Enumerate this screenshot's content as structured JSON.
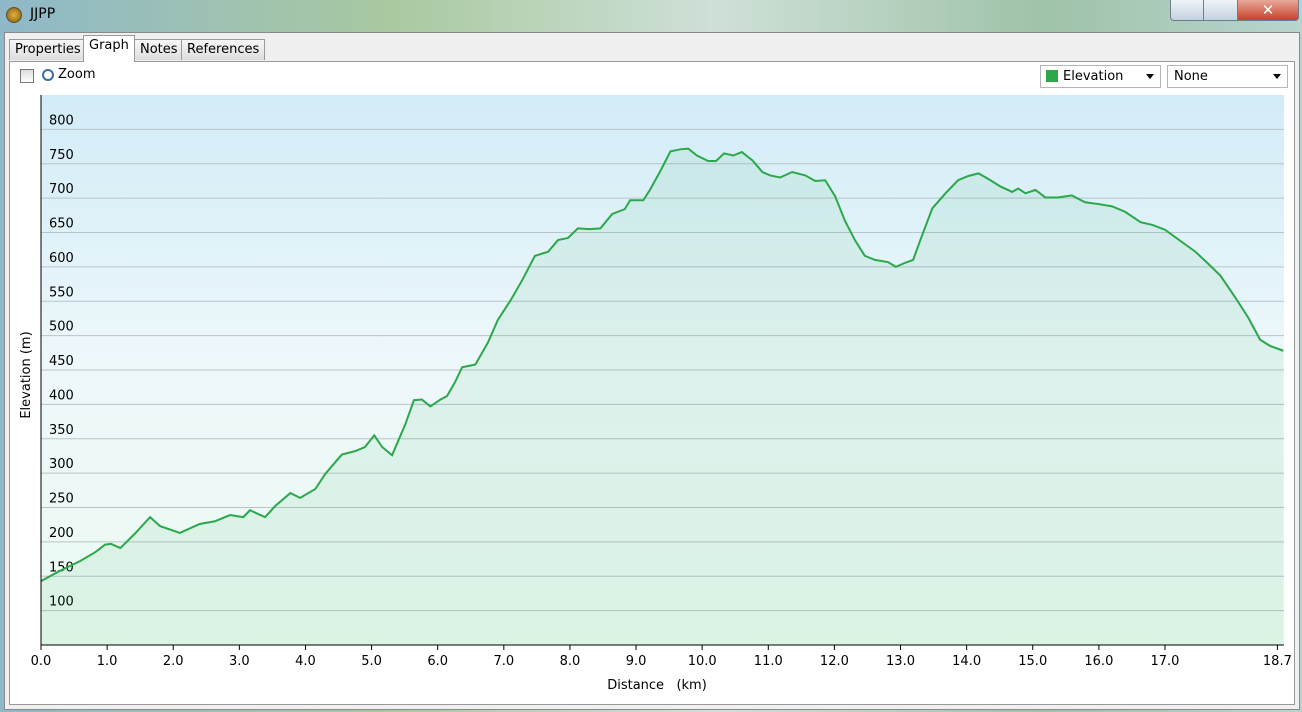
{
  "window": {
    "title": "JJPP"
  },
  "tabs": [
    "Properties",
    "Graph",
    "Notes",
    "References"
  ],
  "toolbar": {
    "zoom_label": "Zoom",
    "secondary_series": "None"
  },
  "chart_data": {
    "type": "line",
    "x_label": "Distance   (km)",
    "y_label": "Elevation (m)",
    "x": [
      0,
      0.29,
      0.59,
      0.82,
      0.97,
      1.06,
      1.2,
      1.42,
      1.65,
      1.8,
      2.1,
      2.4,
      2.63,
      2.86,
      3.06,
      3.16,
      3.39,
      3.54,
      3.77,
      3.92,
      4.15,
      4.3,
      4.55,
      4.75,
      4.9,
      5.04,
      5.16,
      5.31,
      5.51,
      5.64,
      5.76,
      5.89,
      6.04,
      6.14,
      6.26,
      6.37,
      6.57,
      6.76,
      6.91,
      7.1,
      7.28,
      7.47,
      7.67,
      7.82,
      7.97,
      8.12,
      8.3,
      8.46,
      8.64,
      8.83,
      8.91,
      9.11,
      9.21,
      9.36,
      9.52,
      9.67,
      9.79,
      9.92,
      10.09,
      10.21,
      10.33,
      10.47,
      10.6,
      10.76,
      10.91,
      11.03,
      11.18,
      11.36,
      11.56,
      11.71,
      11.86,
      12.01,
      12.16,
      12.31,
      12.46,
      12.62,
      12.81,
      12.93,
      13.07,
      13.19,
      13.3,
      13.48,
      13.68,
      13.87,
      14.02,
      14.18,
      14.36,
      14.51,
      14.69,
      14.78,
      14.89,
      15.04,
      15.19,
      15.38,
      15.59,
      15.79,
      16.02,
      16.2,
      16.4,
      16.63,
      16.81,
      17.0,
      17.23,
      17.46,
      17.66,
      17.84,
      18.06,
      18.26,
      18.44,
      18.59,
      18.79
    ],
    "series": [
      {
        "name": "Elevation",
        "color": "#2aa84a",
        "values": [
          143,
          158,
          172,
          185,
          196,
          197,
          191,
          212,
          236,
          223,
          213,
          226,
          230,
          239,
          236,
          246,
          236,
          252,
          271,
          264,
          277,
          299,
          327,
          332,
          338,
          355,
          338,
          326,
          371,
          406,
          407,
          397,
          407,
          412,
          432,
          454,
          458,
          490,
          523,
          551,
          581,
          616,
          622,
          639,
          642,
          656,
          655,
          656,
          677,
          684,
          697,
          697,
          712,
          738,
          768,
          771,
          772,
          762,
          754,
          754,
          765,
          762,
          767,
          755,
          738,
          733,
          730,
          738,
          733,
          725,
          726,
          703,
          667,
          639,
          616,
          610,
          607,
          600,
          606,
          610,
          639,
          685,
          707,
          726,
          732,
          736,
          726,
          717,
          709,
          714,
          707,
          712,
          701,
          701,
          704,
          694,
          691,
          688,
          680,
          665,
          661,
          654,
          638,
          622,
          604,
          587,
          556,
          526,
          494,
          485,
          478
        ]
      }
    ],
    "xlim": [
      0,
      18.8
    ],
    "ylim": [
      50,
      850
    ],
    "xticks": [
      {
        "value": 0,
        "label": "0.0"
      },
      {
        "value": 1,
        "label": "1.0"
      },
      {
        "value": 2,
        "label": "2.0"
      },
      {
        "value": 3,
        "label": "3.0"
      },
      {
        "value": 4,
        "label": "4.0"
      },
      {
        "value": 5,
        "label": "5.0"
      },
      {
        "value": 6,
        "label": "6.0"
      },
      {
        "value": 7,
        "label": "7.0"
      },
      {
        "value": 8,
        "label": "8.0"
      },
      {
        "value": 9,
        "label": "9.0"
      },
      {
        "value": 10,
        "label": "10.0"
      },
      {
        "value": 11,
        "label": "11.0"
      },
      {
        "value": 12,
        "label": "12.0"
      },
      {
        "value": 13,
        "label": "13.0"
      },
      {
        "value": 14,
        "label": "14.0"
      },
      {
        "value": 15,
        "label": "15.0"
      },
      {
        "value": 16,
        "label": "16.0"
      },
      {
        "value": 17,
        "label": "17.0"
      },
      {
        "value": 18.7,
        "label": "18.7"
      }
    ],
    "yticks": [
      100,
      150,
      200,
      250,
      300,
      350,
      400,
      450,
      500,
      550,
      600,
      650,
      700,
      750,
      800
    ],
    "grid": true
  }
}
